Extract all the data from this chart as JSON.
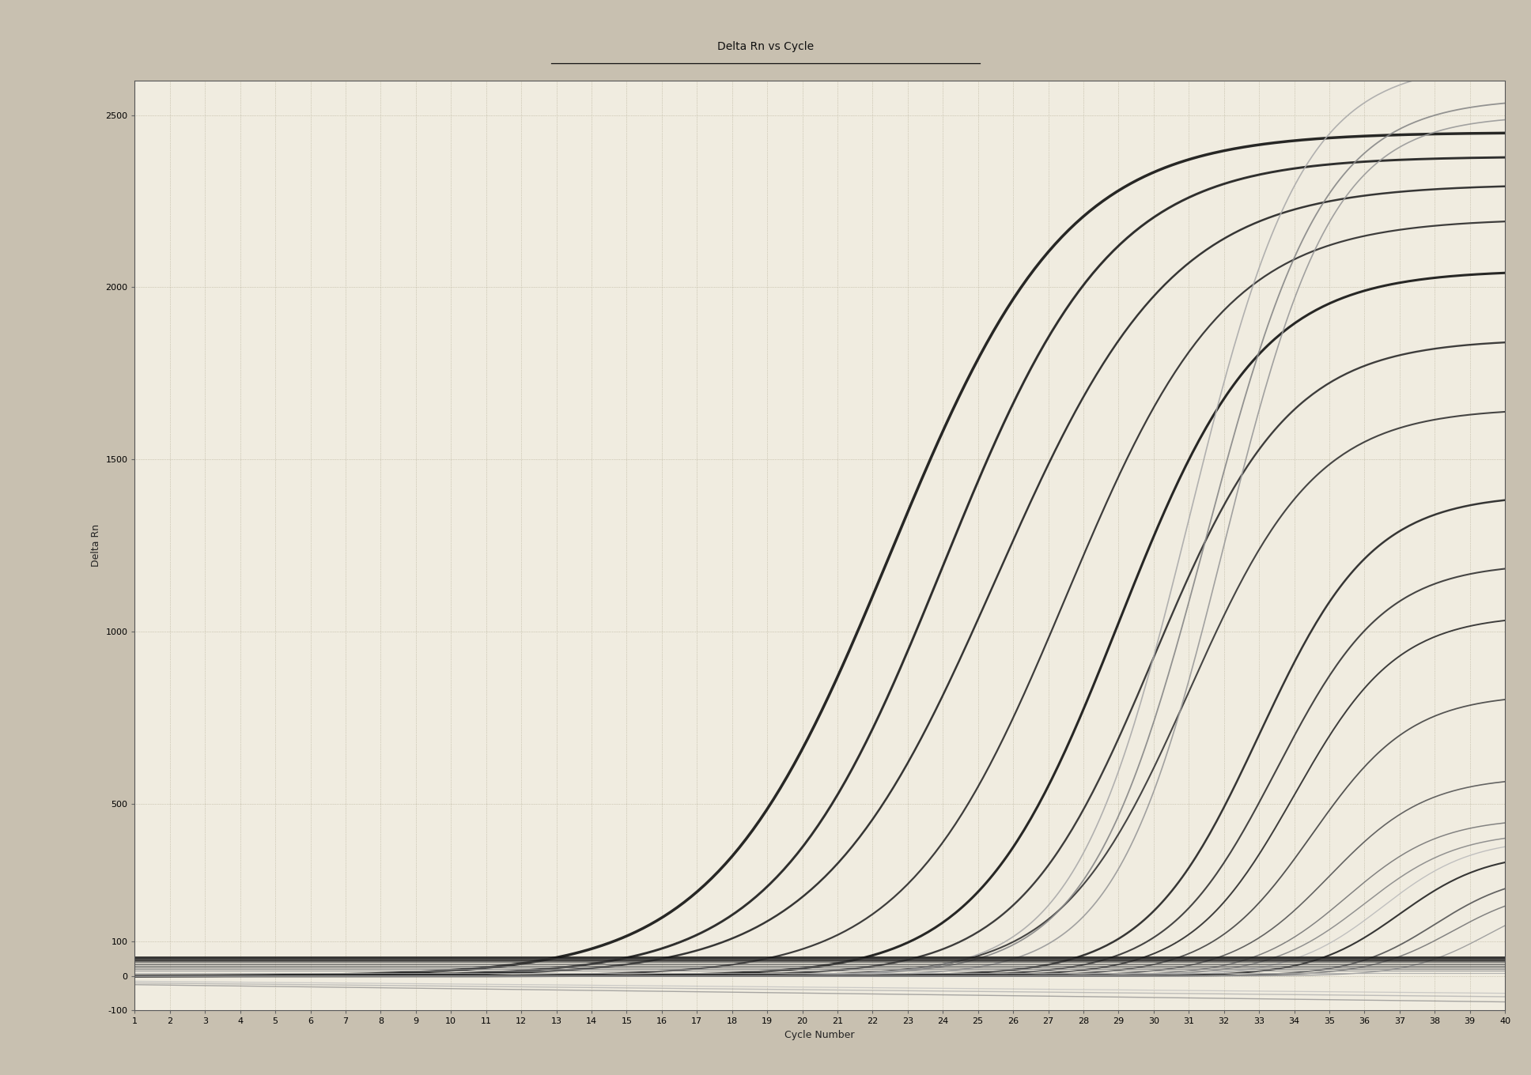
{
  "title": "Delta Rn vs Cycle",
  "xlabel": "Cycle Number",
  "ylabel": "Delta Rn",
  "xlim": [
    1,
    40
  ],
  "ylim": [
    -100,
    2600
  ],
  "ytick_vals": [
    2500,
    2000,
    1500,
    1000,
    500,
    100,
    0,
    -100
  ],
  "xtick_vals": [
    1,
    2,
    3,
    4,
    5,
    6,
    7,
    8,
    9,
    10,
    11,
    12,
    13,
    14,
    15,
    16,
    17,
    18,
    19,
    20,
    21,
    22,
    23,
    24,
    25,
    26,
    27,
    28,
    29,
    30,
    31,
    32,
    33,
    34,
    35,
    36,
    37,
    38,
    39,
    40
  ],
  "bg_outer": "#c8c0b0",
  "bg_plot": "#f0ece0",
  "bg_header": "#b8b0a0",
  "grid_color": "#a0987c",
  "left_stripe_color": "#3a3830",
  "sigmoid_curves": [
    {
      "mid": 22.5,
      "plat": 2450,
      "k": 0.4,
      "col": "#111111",
      "lw": 2.5
    },
    {
      "mid": 24.0,
      "plat": 2380,
      "k": 0.42,
      "col": "#1a1a1a",
      "lw": 2.1
    },
    {
      "mid": 25.5,
      "plat": 2300,
      "k": 0.4,
      "col": "#222222",
      "lw": 1.8
    },
    {
      "mid": 27.5,
      "plat": 2200,
      "k": 0.44,
      "col": "#2a2a2a",
      "lw": 1.6
    },
    {
      "mid": 29.0,
      "plat": 2050,
      "k": 0.5,
      "col": "#111111",
      "lw": 2.2
    },
    {
      "mid": 30.0,
      "plat": 1850,
      "k": 0.52,
      "col": "#2a2a2a",
      "lw": 1.7
    },
    {
      "mid": 31.0,
      "plat": 1650,
      "k": 0.55,
      "col": "#333333",
      "lw": 1.5
    },
    {
      "mid": 31.5,
      "plat": 2550,
      "k": 0.6,
      "col": "#888888",
      "lw": 1.3
    },
    {
      "mid": 31.0,
      "plat": 2650,
      "k": 0.62,
      "col": "#aaaaaa",
      "lw": 1.2
    },
    {
      "mid": 32.0,
      "plat": 2500,
      "k": 0.65,
      "col": "#999999",
      "lw": 1.2
    },
    {
      "mid": 33.0,
      "plat": 1400,
      "k": 0.62,
      "col": "#222222",
      "lw": 1.8
    },
    {
      "mid": 33.5,
      "plat": 1200,
      "k": 0.65,
      "col": "#333333",
      "lw": 1.5
    },
    {
      "mid": 34.0,
      "plat": 1050,
      "k": 0.68,
      "col": "#2a2a2a",
      "lw": 1.4
    },
    {
      "mid": 34.5,
      "plat": 820,
      "k": 0.7,
      "col": "#444444",
      "lw": 1.3
    },
    {
      "mid": 35.0,
      "plat": 580,
      "k": 0.72,
      "col": "#555555",
      "lw": 1.2
    },
    {
      "mid": 35.5,
      "plat": 460,
      "k": 0.75,
      "col": "#777777",
      "lw": 1.1
    },
    {
      "mid": 36.0,
      "plat": 420,
      "k": 0.75,
      "col": "#888888",
      "lw": 1.1
    },
    {
      "mid": 36.5,
      "plat": 400,
      "k": 0.78,
      "col": "#bbbbbb",
      "lw": 1.0
    },
    {
      "mid": 37.0,
      "plat": 360,
      "k": 0.8,
      "col": "#222222",
      "lw": 1.5
    },
    {
      "mid": 38.0,
      "plat": 300,
      "k": 0.85,
      "col": "#555555",
      "lw": 1.3
    },
    {
      "mid": 38.5,
      "plat": 260,
      "k": 0.85,
      "col": "#777777",
      "lw": 1.1
    },
    {
      "mid": 39.5,
      "plat": 240,
      "k": 0.9,
      "col": "#999999",
      "lw": 1.0
    }
  ],
  "flat_curves": [
    {
      "base": 55,
      "col": "#111111",
      "lw": 2.0
    },
    {
      "base": 50,
      "col": "#333333",
      "lw": 1.5
    },
    {
      "base": 45,
      "col": "#222222",
      "lw": 1.4
    },
    {
      "base": 40,
      "col": "#444444",
      "lw": 1.2
    },
    {
      "base": 35,
      "col": "#555555",
      "lw": 1.1
    },
    {
      "base": 30,
      "col": "#666666",
      "lw": 1.0
    },
    {
      "base": 25,
      "col": "#777777",
      "lw": 1.0
    },
    {
      "base": 20,
      "col": "#888888",
      "lw": 0.9
    },
    {
      "base": 15,
      "col": "#999999",
      "lw": 0.9
    },
    {
      "base": 8,
      "col": "#aaaaaa",
      "lw": 0.8
    }
  ],
  "declining_curves": [
    {
      "y0": -25,
      "y1": -75,
      "col": "#888888",
      "lw": 1.0
    },
    {
      "y0": -20,
      "y1": -60,
      "col": "#aaaaaa",
      "lw": 1.0
    },
    {
      "y0": -15,
      "y1": -50,
      "col": "#bbbbbb",
      "lw": 0.9
    }
  ],
  "threshold_y": 55,
  "title_fontsize": 10,
  "axis_label_fontsize": 9,
  "tick_fontsize": 8
}
